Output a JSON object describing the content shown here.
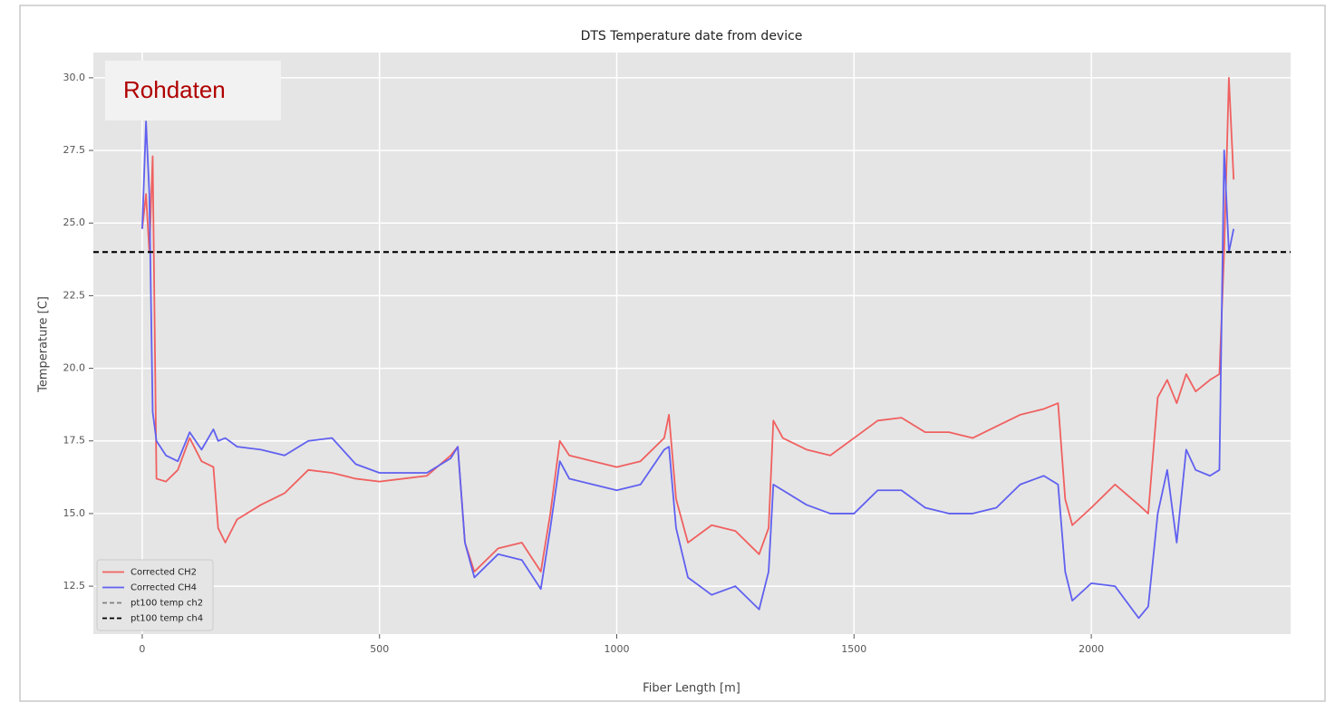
{
  "chart_data": {
    "type": "line",
    "title": "DTS Temperature date from device",
    "xlabel": "Fiber Length [m]",
    "ylabel": "Temperature [C]",
    "annotation": "Rohdaten",
    "x": [
      0,
      8,
      15,
      22,
      30,
      50,
      75,
      100,
      125,
      150,
      160,
      175,
      200,
      250,
      300,
      350,
      400,
      450,
      500,
      550,
      600,
      650,
      665,
      680,
      700,
      750,
      800,
      840,
      860,
      880,
      900,
      950,
      1000,
      1050,
      1100,
      1110,
      1125,
      1150,
      1200,
      1250,
      1300,
      1320,
      1330,
      1350,
      1400,
      1450,
      1500,
      1550,
      1600,
      1650,
      1700,
      1750,
      1800,
      1850,
      1900,
      1930,
      1945,
      1960,
      2000,
      2050,
      2100,
      2120,
      2140,
      2160,
      2180,
      2200,
      2220,
      2250,
      2270,
      2280,
      2290,
      2300
    ],
    "series": [
      {
        "name": "Corrected CH2",
        "color": "#f06060",
        "values": [
          24.8,
          26.0,
          24.0,
          27.3,
          16.2,
          16.1,
          16.5,
          17.6,
          16.8,
          16.6,
          14.5,
          14.0,
          14.8,
          15.3,
          15.7,
          16.5,
          16.4,
          16.2,
          16.1,
          16.2,
          16.3,
          17.0,
          17.3,
          14.0,
          13.0,
          13.8,
          14.0,
          13.0,
          15.0,
          17.5,
          17.0,
          16.8,
          16.6,
          16.8,
          17.6,
          18.4,
          15.5,
          14.0,
          14.6,
          14.4,
          13.6,
          14.5,
          18.2,
          17.6,
          17.2,
          17.0,
          17.6,
          18.2,
          18.3,
          17.8,
          17.8,
          17.6,
          18.0,
          18.4,
          18.6,
          18.8,
          15.5,
          14.6,
          15.2,
          16.0,
          15.3,
          15.0,
          19.0,
          19.6,
          18.8,
          19.8,
          19.2,
          19.6,
          19.8,
          24.0,
          30.0,
          26.5
        ]
      },
      {
        "name": "Corrected CH4",
        "color": "#6060f0",
        "values": [
          24.8,
          28.5,
          26.0,
          18.5,
          17.5,
          17.0,
          16.8,
          17.8,
          17.2,
          17.9,
          17.5,
          17.6,
          17.3,
          17.2,
          17.0,
          17.5,
          17.6,
          16.7,
          16.4,
          16.4,
          16.4,
          16.9,
          17.3,
          14.0,
          12.8,
          13.6,
          13.4,
          12.4,
          14.5,
          16.8,
          16.2,
          16.0,
          15.8,
          16.0,
          17.2,
          17.3,
          14.5,
          12.8,
          12.2,
          12.5,
          11.7,
          13.0,
          16.0,
          15.8,
          15.3,
          15.0,
          15.0,
          15.8,
          15.8,
          15.2,
          15.0,
          15.0,
          15.2,
          16.0,
          16.3,
          16.0,
          13.0,
          12.0,
          12.6,
          12.5,
          11.4,
          11.8,
          15.0,
          16.5,
          14.0,
          17.2,
          16.5,
          16.3,
          16.5,
          27.5,
          24.0,
          24.8
        ]
      }
    ],
    "hlines": [
      {
        "name": "pt100 temp ch2",
        "color": "#808080",
        "value": 24.0
      },
      {
        "name": "pt100 temp ch4",
        "color": "#000000",
        "value": 24.0
      }
    ],
    "xlim": [
      -103,
      2420
    ],
    "ylim": [
      10.85,
      30.87
    ],
    "xticks": [
      0,
      500,
      1000,
      1500,
      2000
    ],
    "yticks": [
      12.5,
      {
        "value": 15,
        "label": "15.0"
      },
      17.5,
      {
        "value": 20,
        "label": "20.0"
      },
      22.5,
      {
        "value": 25,
        "label": "25.0"
      },
      27.5,
      {
        "value": 30,
        "label": "30.0"
      }
    ],
    "grid": true,
    "legend": "lower left"
  }
}
